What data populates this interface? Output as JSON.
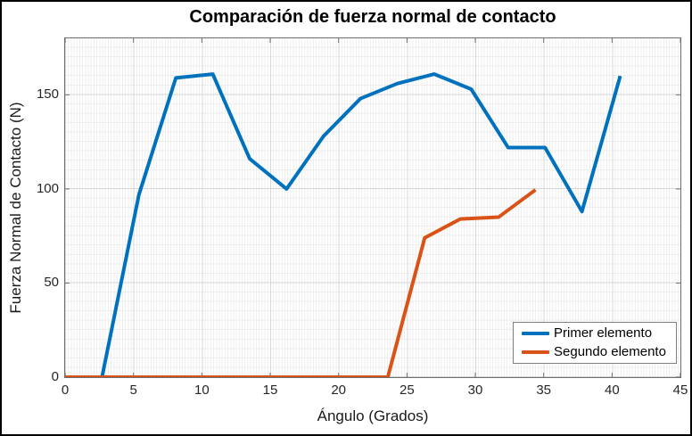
{
  "title": "Comparación de fuerza normal de contacto",
  "chart_data": {
    "type": "line",
    "title": "Comparación de fuerza normal de contacto",
    "xlabel": "Ángulo (Grados)",
    "ylabel": "Fuerza Normal de Contacto (N)",
    "xlim": [
      0,
      45
    ],
    "ylim": [
      0,
      180
    ],
    "xticks": [
      0,
      5,
      10,
      15,
      20,
      25,
      30,
      35,
      40,
      45
    ],
    "yticks": [
      0,
      50,
      100,
      150
    ],
    "grid": "major and fine minor gridlines on",
    "legend_position": "south-east inside plot",
    "axis_color": "#6e6e6e",
    "tick_label_color": "#262626",
    "series": [
      {
        "name": "Primer elemento",
        "color": "#0072BD",
        "x": [
          0,
          2.7,
          5.4,
          8.1,
          10.8,
          13.5,
          16.2,
          18.9,
          21.6,
          24.3,
          27.0,
          29.7,
          32.4,
          35.1,
          37.8,
          40.6
        ],
        "y": [
          0,
          0,
          97,
          159,
          161,
          116,
          100,
          128,
          148,
          156,
          161,
          153,
          122,
          122,
          88,
          160
        ]
      },
      {
        "name": "Segundo elemento",
        "color": "#D95319",
        "x": [
          0,
          23.6,
          26.3,
          28.9,
          31.7,
          34.4
        ],
        "y": [
          0,
          0,
          74,
          84,
          85,
          99.5
        ]
      }
    ]
  }
}
